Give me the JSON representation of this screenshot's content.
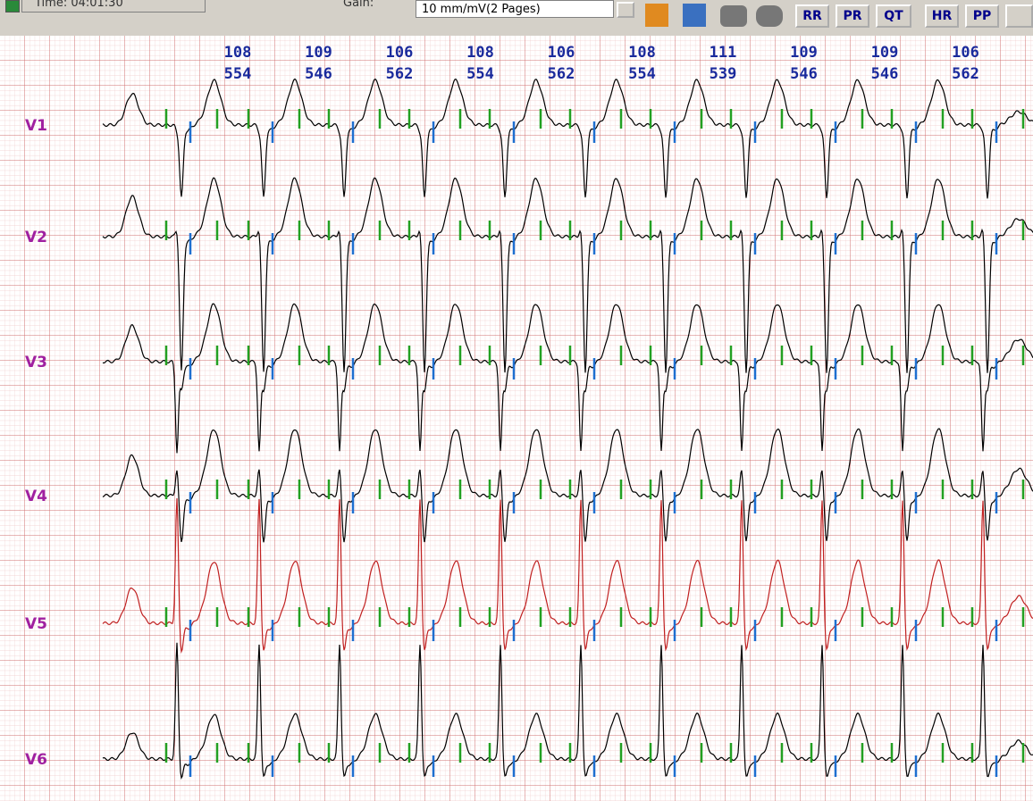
{
  "toolbar": {
    "time": "Time: 04:01:30",
    "gain_label": "Gain:",
    "gain_value": "10 mm/mV(2 Pages)",
    "buttons": [
      "RR",
      "PR",
      "QT",
      "HR",
      "PP"
    ]
  },
  "beats": [
    {
      "hr": "108",
      "rr": "554"
    },
    {
      "hr": "109",
      "rr": "546"
    },
    {
      "hr": "106",
      "rr": "562"
    },
    {
      "hr": "108",
      "rr": "554"
    },
    {
      "hr": "106",
      "rr": "562"
    },
    {
      "hr": "108",
      "rr": "554"
    },
    {
      "hr": "111",
      "rr": "539"
    },
    {
      "hr": "109",
      "rr": "546"
    },
    {
      "hr": "109",
      "rr": "546"
    },
    {
      "hr": "106",
      "rr": "562"
    }
  ],
  "leads": [
    "V1",
    "V2",
    "V3",
    "V4",
    "V5",
    "V6"
  ]
}
